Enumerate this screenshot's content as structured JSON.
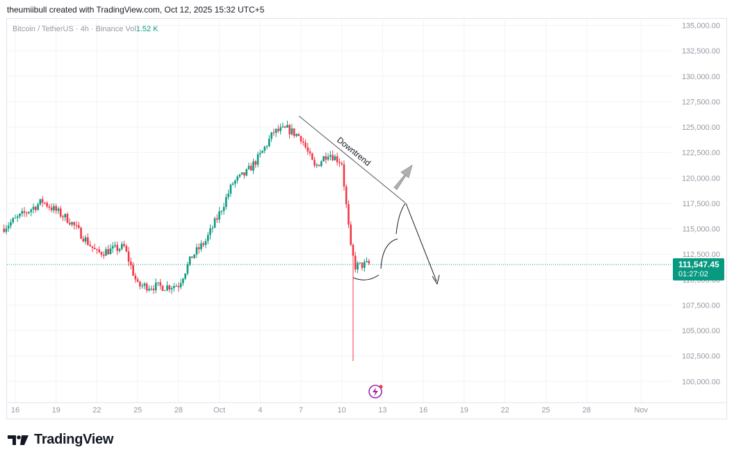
{
  "header": {
    "attribution": "theumiibull created with TradingView.com, Oct 12, 2025 15:32 UTC+5"
  },
  "symbol": {
    "title": "Bitcoin / TetherUS · 4h · Binance",
    "vol_label": "Vol",
    "vol_value": "1.52 K"
  },
  "price_tag": {
    "price": "111,547.45",
    "countdown": "01:27:02"
  },
  "annotation": {
    "text": "Downtrend"
  },
  "logo": {
    "text": "TradingView"
  },
  "colors": {
    "up": "#089981",
    "down": "#f23645",
    "grid": "#f0f3fa",
    "text": "#9598a1",
    "arrow_gray": "#a9a9a9",
    "event_icon": "#9c27b0"
  },
  "icons": [
    "tradingview-logo-icon",
    "lightning-event-icon",
    "up-arrow-icon",
    "down-arrow-icon"
  ],
  "chart_data": {
    "type": "candlestick",
    "title": "",
    "xlabel": "",
    "ylabel": "",
    "ylim": [
      98000,
      136000
    ],
    "y_ticks": [
      "135,000.00",
      "132,500.00",
      "130,000.00",
      "127,500.00",
      "125,000.00",
      "122,500.00",
      "120,000.00",
      "117,500.00",
      "115,000.00",
      "112,500.00",
      "110,000.00",
      "107,500.00",
      "105,000.00",
      "102,500.00",
      "100,000.00"
    ],
    "y_tick_values": [
      135000,
      132500,
      130000,
      127500,
      125000,
      122500,
      120000,
      117500,
      115000,
      112500,
      110000,
      107500,
      105000,
      102500,
      100000
    ],
    "x_ticks": [
      "16",
      "19",
      "22",
      "25",
      "28",
      "Oct",
      "4",
      "7",
      "10",
      "13",
      "16",
      "19",
      "22",
      "25",
      "28",
      "Nov"
    ],
    "x_tick_dates": [
      "2025-09-16",
      "2025-09-19",
      "2025-09-22",
      "2025-09-25",
      "2025-09-28",
      "2025-10-01",
      "2025-10-04",
      "2025-10-07",
      "2025-10-10",
      "2025-10-13",
      "2025-10-16",
      "2025-10-19",
      "2025-10-22",
      "2025-10-25",
      "2025-10-28",
      "2025-11-01"
    ],
    "x_range": [
      "2025-09-16",
      "2025-11-01"
    ],
    "last_price": 111547.45,
    "key_points": [
      {
        "date": "2025-09-15",
        "close": 115000
      },
      {
        "date": "2025-09-18",
        "close": 117700
      },
      {
        "date": "2025-09-20",
        "close": 115800
      },
      {
        "date": "2025-09-22",
        "close": 112600
      },
      {
        "date": "2025-09-24",
        "close": 113200
      },
      {
        "date": "2025-09-25",
        "close": 109400
      },
      {
        "date": "2025-09-27",
        "close": 109300
      },
      {
        "date": "2025-09-28",
        "close": 109500
      },
      {
        "date": "2025-09-29",
        "close": 112300
      },
      {
        "date": "2025-09-30",
        "close": 113800
      },
      {
        "date": "2025-10-01",
        "close": 116500
      },
      {
        "date": "2025-10-02",
        "close": 119500
      },
      {
        "date": "2025-10-03",
        "close": 120500
      },
      {
        "date": "2025-10-04",
        "close": 122200
      },
      {
        "date": "2025-10-05",
        "close": 124500
      },
      {
        "date": "2025-10-06",
        "close": 124800
      },
      {
        "date": "2025-10-07",
        "close": 124000
      },
      {
        "date": "2025-10-08",
        "close": 121000
      },
      {
        "date": "2025-10-09",
        "close": 122500
      },
      {
        "date": "2025-10-10",
        "close": 121500
      },
      {
        "date": "2025-10-10T16:00",
        "close": 113000
      },
      {
        "date": "2025-10-11",
        "close": 111300
      },
      {
        "date": "2025-10-12",
        "close": 111547.45
      }
    ],
    "spike_low": {
      "date": "2025-10-10T20:00",
      "low": 102000
    },
    "trendline": {
      "from": {
        "date": "2025-10-07",
        "price": 126200
      },
      "to": {
        "date": "2025-10-14T20:00",
        "price": 117400
      }
    }
  }
}
